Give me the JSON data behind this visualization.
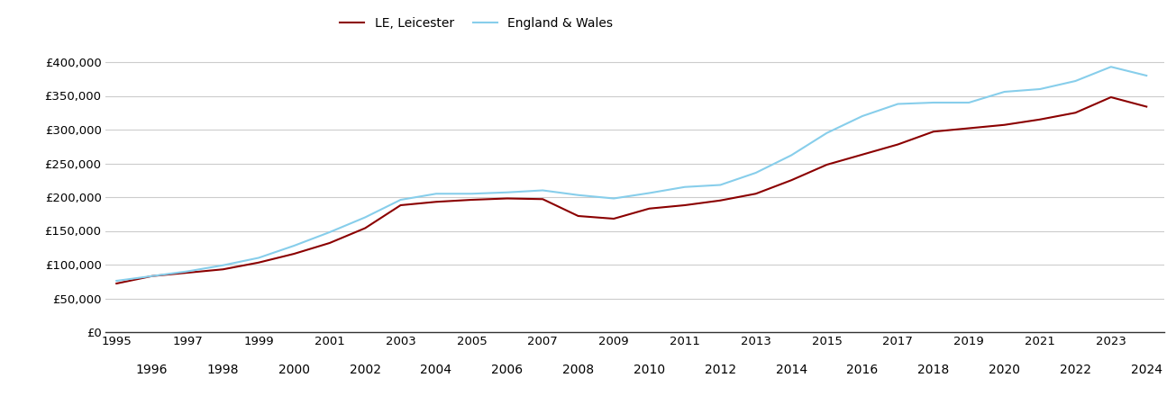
{
  "legend_labels": [
    "LE, Leicester",
    "England & Wales"
  ],
  "line_colors": [
    "#8B0000",
    "#87CEEB"
  ],
  "years": [
    1995,
    1996,
    1997,
    1998,
    1999,
    2000,
    2001,
    2002,
    2003,
    2004,
    2005,
    2006,
    2007,
    2008,
    2009,
    2010,
    2011,
    2012,
    2013,
    2014,
    2015,
    2016,
    2017,
    2018,
    2019,
    2020,
    2021,
    2022,
    2023,
    2024
  ],
  "leicester": [
    72000,
    83000,
    88000,
    93000,
    103000,
    116000,
    132000,
    154000,
    188000,
    193000,
    196000,
    198000,
    197000,
    172000,
    168000,
    183000,
    188000,
    195000,
    205000,
    225000,
    248000,
    263000,
    278000,
    297000,
    302000,
    307000,
    315000,
    325000,
    348000,
    334000
  ],
  "england_wales": [
    76000,
    83000,
    90000,
    99000,
    110000,
    128000,
    148000,
    170000,
    196000,
    205000,
    205000,
    207000,
    210000,
    203000,
    198000,
    206000,
    215000,
    218000,
    236000,
    262000,
    295000,
    320000,
    338000,
    340000,
    340000,
    356000,
    360000,
    372000,
    393000,
    380000
  ],
  "ylim": [
    0,
    420000
  ],
  "yticks": [
    0,
    50000,
    100000,
    150000,
    200000,
    250000,
    300000,
    350000,
    400000
  ],
  "ytick_labels": [
    "£0",
    "£50,000",
    "£100,000",
    "£150,000",
    "£200,000",
    "£250,000",
    "£300,000",
    "£350,000",
    "£400,000"
  ],
  "background_color": "#ffffff",
  "grid_color": "#cccccc",
  "line_width": 1.5
}
